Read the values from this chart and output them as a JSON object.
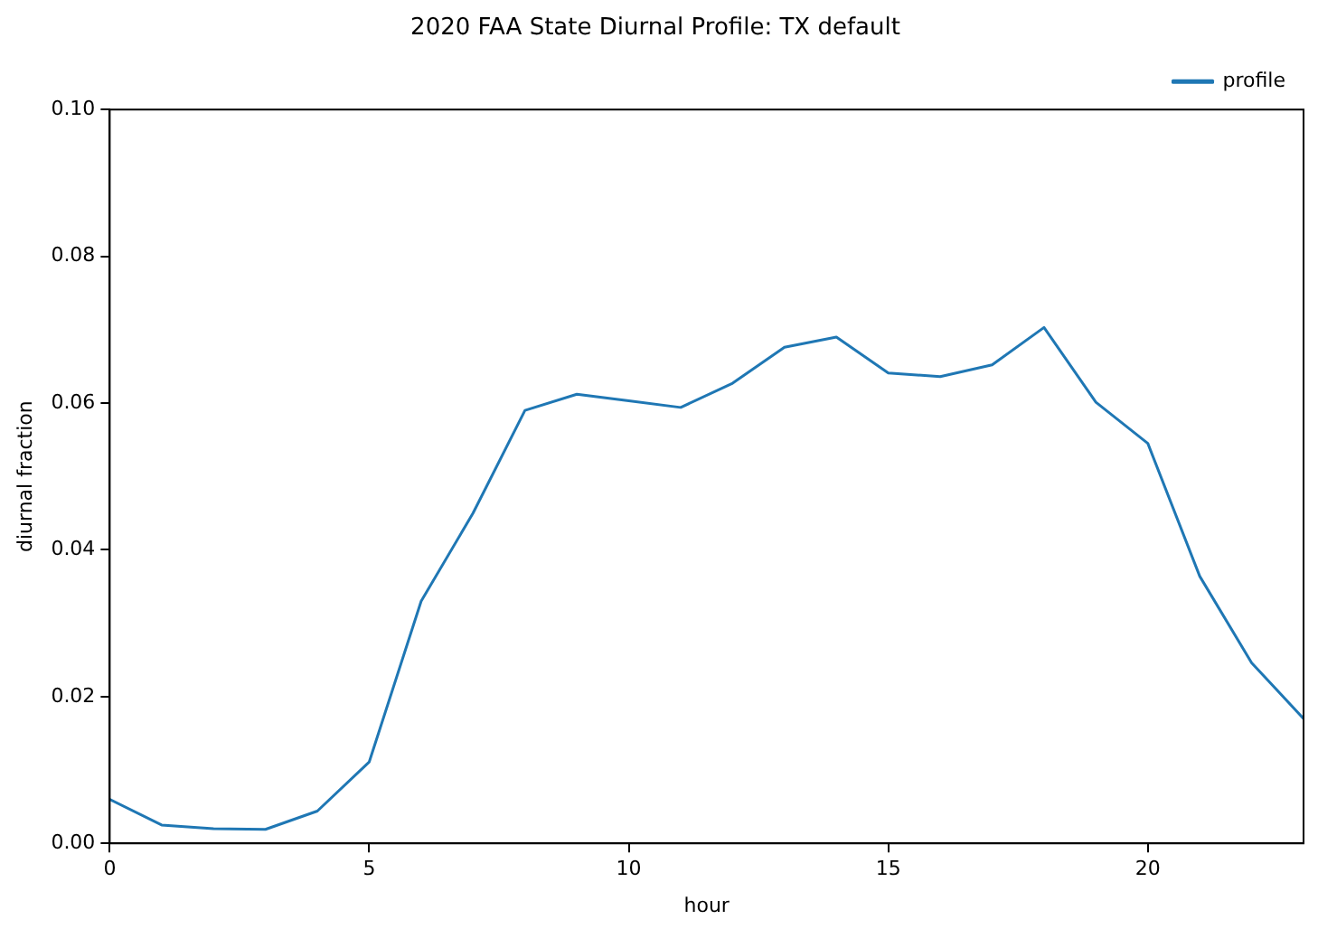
{
  "chart_data": {
    "type": "line",
    "title": "2020 FAA State Diurnal Profile: TX default",
    "xlabel": "hour",
    "ylabel": "diurnal fraction",
    "x": [
      0,
      1,
      2,
      3,
      4,
      5,
      6,
      7,
      8,
      9,
      10,
      11,
      12,
      13,
      14,
      15,
      16,
      17,
      18,
      19,
      20,
      21,
      22,
      23
    ],
    "series": [
      {
        "name": "profile",
        "color": "#1f77b4",
        "values": [
          0.006,
          0.0025,
          0.002,
          0.0019,
          0.0044,
          0.0111,
          0.033,
          0.045,
          0.059,
          0.0612,
          0.0603,
          0.0594,
          0.0627,
          0.0676,
          0.069,
          0.0641,
          0.0636,
          0.0652,
          0.0703,
          0.0601,
          0.0545,
          0.0364,
          0.0246,
          0.017
        ]
      }
    ],
    "xlim": [
      0,
      23
    ],
    "ylim": [
      0,
      0.1
    ],
    "xticks": [
      0,
      5,
      10,
      15,
      20
    ],
    "yticks": [
      {
        "value": 0,
        "label": "0.00"
      },
      {
        "value": 0.02,
        "label": "0.02"
      },
      {
        "value": 0.04,
        "label": "0.04"
      },
      {
        "value": 0.06,
        "label": "0.06"
      },
      {
        "value": 0.08,
        "label": "0.08"
      },
      {
        "value": 0.1,
        "label": "0.10"
      }
    ],
    "grid": false,
    "legend": "top right",
    "marker": "none",
    "line_style": "solid"
  }
}
